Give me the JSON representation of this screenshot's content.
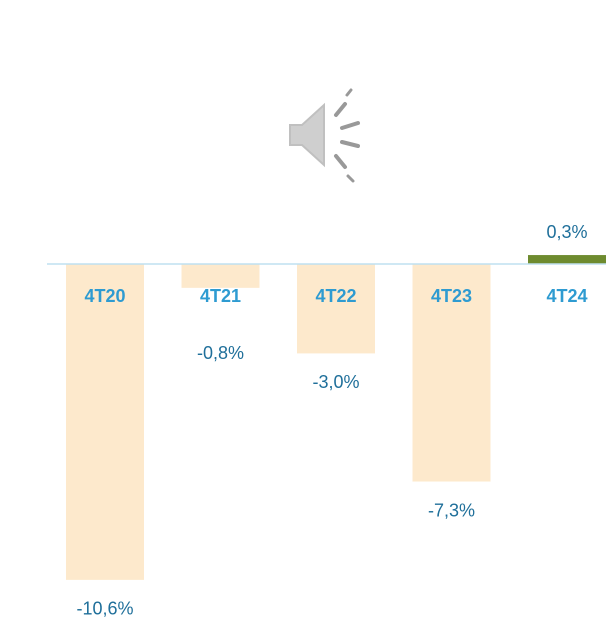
{
  "chart_data": {
    "type": "bar",
    "categories": [
      "4T20",
      "4T21",
      "4T22",
      "4T23",
      "4T24"
    ],
    "values": [
      -10.6,
      -0.8,
      -3.0,
      -7.3,
      0.3
    ],
    "value_labels": [
      "-10,6%",
      "-0,8%",
      "-3,0%",
      "-7,3%",
      "0,3%"
    ],
    "colors": [
      "#fde9cc",
      "#fde9cc",
      "#fde9cc",
      "#fde9cc",
      "#6e8b2f"
    ]
  }
}
